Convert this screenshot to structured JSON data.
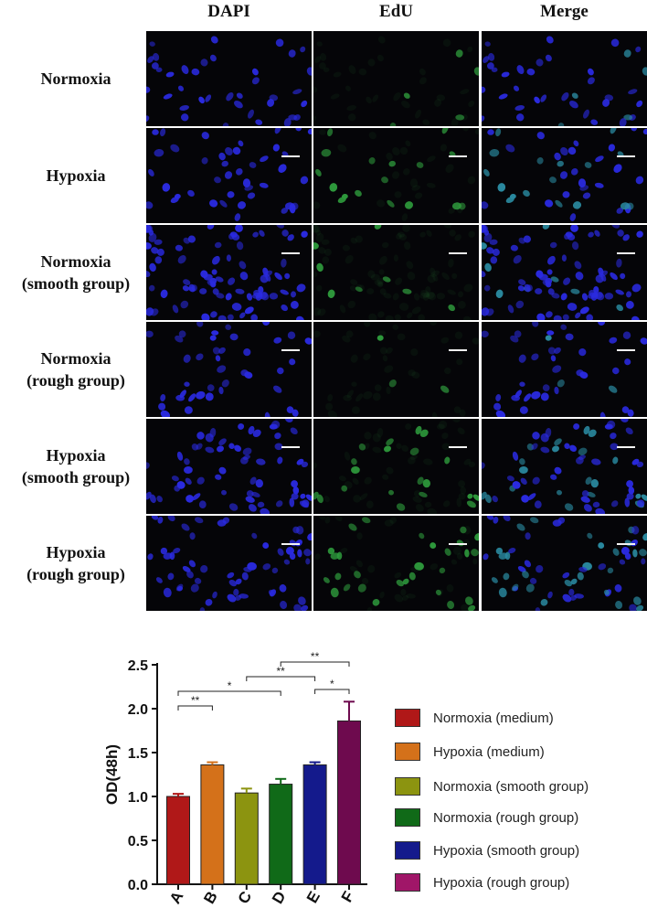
{
  "microscopy": {
    "columns": [
      "DAPI",
      "EdU",
      "Merge"
    ],
    "rows": [
      {
        "line1": "Normoxia",
        "line2": ""
      },
      {
        "line1": "Hypoxia",
        "line2": ""
      },
      {
        "line1": "Normoxia",
        "line2": "(smooth group)"
      },
      {
        "line1": "Normoxia",
        "line2": "(rough group)"
      },
      {
        "line1": "Hypoxia",
        "line2": "(smooth group)"
      },
      {
        "line1": "Hypoxia",
        "line2": "(rough group)"
      }
    ],
    "stain_colors": {
      "dapi": "#2a2ae0",
      "edu": "#2e9a3c",
      "background": "#050508"
    }
  },
  "chart_data": {
    "type": "bar",
    "categories": [
      "A",
      "B",
      "C",
      "D",
      "E",
      "F"
    ],
    "values": [
      1.0,
      1.36,
      1.04,
      1.14,
      1.36,
      1.86
    ],
    "errors": [
      0.03,
      0.03,
      0.05,
      0.06,
      0.03,
      0.22
    ],
    "colors": [
      "#b01818",
      "#d4711a",
      "#8c9410",
      "#106a18",
      "#141a8c",
      "#6e0a4e"
    ],
    "ylabel": "OD(48h)",
    "xlabel": "",
    "ylim": [
      0,
      2.5
    ],
    "yticks": [
      "0.0",
      "0.5",
      "1.0",
      "1.5",
      "2.0",
      "2.5"
    ],
    "significance": [
      {
        "from": "A",
        "to": "B",
        "label": "**"
      },
      {
        "from": "A",
        "to": "D",
        "label": "*"
      },
      {
        "from": "C",
        "to": "E",
        "label": "**"
      },
      {
        "from": "D",
        "to": "F",
        "label": "**"
      },
      {
        "from": "E",
        "to": "F",
        "label": "*"
      }
    ],
    "legend": [
      "Normoxia (medium)",
      "Hypoxia (medium)",
      "Normoxia (smooth group)",
      "Normoxia (rough group)",
      "Hypoxia (smooth group)",
      "Hypoxia (rough group)"
    ]
  }
}
